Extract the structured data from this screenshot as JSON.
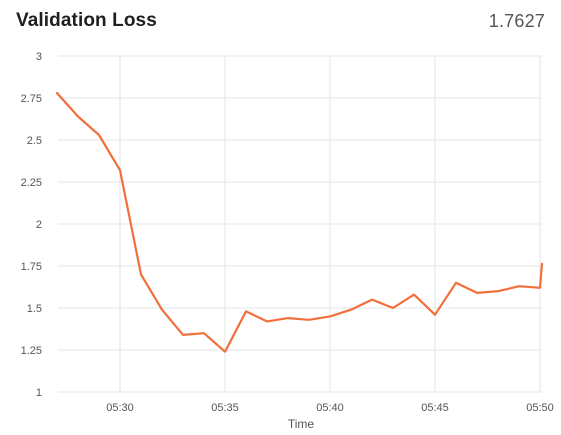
{
  "header": {
    "title": "Validation Loss",
    "current_value": "1.7627"
  },
  "colors": {
    "series": "#f26f3c",
    "grid": "#e6e6e6",
    "text": "#555555"
  },
  "chart_data": {
    "type": "line",
    "title": "Validation Loss",
    "xlabel": "Time",
    "ylabel": "",
    "ylim": [
      1,
      3
    ],
    "xlim": [
      "05:27",
      "05:50"
    ],
    "grid": true,
    "y_ticks": [
      "1",
      "1.25",
      "1.5",
      "1.75",
      "2",
      "2.25",
      "2.5",
      "2.75",
      "3"
    ],
    "x_ticks": [
      "05:30",
      "05:35",
      "05:40",
      "05:45",
      "05:50"
    ],
    "series": [
      {
        "name": "",
        "x": [
          "05:27",
          "05:28",
          "05:29",
          "05:30",
          "05:31",
          "05:32",
          "05:33",
          "05:34",
          "05:35",
          "05:36",
          "05:37",
          "05:38",
          "05:39",
          "05:40",
          "05:41",
          "05:42",
          "05:43",
          "05:44",
          "05:45",
          "05:46",
          "05:47",
          "05:48",
          "05:49",
          "05:50",
          "05:51"
        ],
        "values": [
          2.78,
          2.64,
          2.53,
          2.32,
          1.7,
          1.49,
          1.34,
          1.35,
          1.24,
          1.48,
          1.42,
          1.44,
          1.43,
          1.45,
          1.49,
          1.55,
          1.5,
          1.58,
          1.46,
          1.65,
          1.59,
          1.6,
          1.63,
          1.62,
          1.7627
        ]
      }
    ]
  }
}
